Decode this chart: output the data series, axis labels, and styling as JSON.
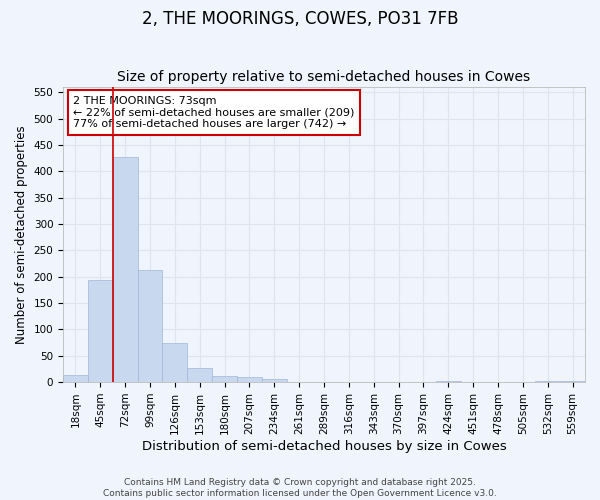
{
  "title": "2, THE MOORINGS, COWES, PO31 7FB",
  "subtitle": "Size of property relative to semi-detached houses in Cowes",
  "xlabel": "Distribution of semi-detached houses by size in Cowes",
  "ylabel": "Number of semi-detached properties",
  "categories": [
    "18sqm",
    "45sqm",
    "72sqm",
    "99sqm",
    "126sqm",
    "153sqm",
    "180sqm",
    "207sqm",
    "234sqm",
    "261sqm",
    "289sqm",
    "316sqm",
    "343sqm",
    "370sqm",
    "397sqm",
    "424sqm",
    "451sqm",
    "478sqm",
    "505sqm",
    "532sqm",
    "559sqm"
  ],
  "values": [
    13,
    193,
    427,
    212,
    75,
    27,
    11,
    9,
    5,
    1,
    0,
    0,
    0,
    0,
    0,
    3,
    0,
    0,
    0,
    3,
    2
  ],
  "bar_color": "#c8d8ee",
  "bar_edge_color": "#a0b8d8",
  "bar_edge_width": 0.5,
  "vline_color": "#cc0000",
  "vline_x": 1.5,
  "annotation_line1": "2 THE MOORINGS: 73sqm",
  "annotation_line2": "← 22% of semi-detached houses are smaller (209)",
  "annotation_line3": "77% of semi-detached houses are larger (742) →",
  "annotation_box_color": "#ffffff",
  "annotation_box_edge_color": "#cc0000",
  "ylim": [
    0,
    560
  ],
  "yticks": [
    0,
    50,
    100,
    150,
    200,
    250,
    300,
    350,
    400,
    450,
    500,
    550
  ],
  "background_color": "#f0f4fc",
  "grid_color": "#dde5f0",
  "footer_text": "Contains HM Land Registry data © Crown copyright and database right 2025.\nContains public sector information licensed under the Open Government Licence v3.0.",
  "title_fontsize": 12,
  "subtitle_fontsize": 10,
  "xlabel_fontsize": 9.5,
  "ylabel_fontsize": 8.5,
  "tick_fontsize": 7.5,
  "annotation_fontsize": 8,
  "footer_fontsize": 6.5
}
